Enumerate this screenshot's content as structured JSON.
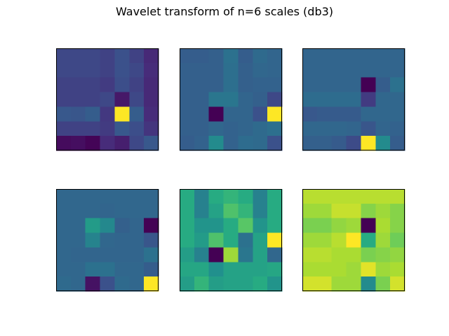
{
  "figure": {
    "title": "Wavelet transform of n=6 scales (db3)"
  },
  "chart_data": {
    "type": "heatmap",
    "title": "Wavelet transform of n=6 scales (db3)",
    "colormap": "viridis",
    "grid": false,
    "axes_ticks": false,
    "layout": "2x3",
    "value_range": [
      0,
      1
    ],
    "panels": [
      {
        "values": [
          [
            0.22,
            0.22,
            0.22,
            0.2,
            0.25,
            0.2,
            0.12
          ],
          [
            0.22,
            0.22,
            0.22,
            0.2,
            0.25,
            0.22,
            0.13
          ],
          [
            0.2,
            0.2,
            0.2,
            0.18,
            0.24,
            0.2,
            0.12
          ],
          [
            0.2,
            0.2,
            0.2,
            0.22,
            0.07,
            0.22,
            0.12
          ],
          [
            0.28,
            0.27,
            0.3,
            0.17,
            1.0,
            0.3,
            0.13
          ],
          [
            0.2,
            0.2,
            0.2,
            0.18,
            0.28,
            0.24,
            0.16
          ],
          [
            0.03,
            0.04,
            0.01,
            0.13,
            0.09,
            0.22,
            0.28
          ]
        ]
      },
      {
        "values": [
          [
            0.3,
            0.3,
            0.31,
            0.38,
            0.3,
            0.35,
            0.33
          ],
          [
            0.31,
            0.31,
            0.31,
            0.37,
            0.31,
            0.34,
            0.33
          ],
          [
            0.31,
            0.31,
            0.31,
            0.37,
            0.31,
            0.32,
            0.32
          ],
          [
            0.31,
            0.31,
            0.4,
            0.4,
            0.33,
            0.31,
            0.22
          ],
          [
            0.31,
            0.31,
            0.0,
            0.33,
            0.33,
            0.25,
            1.0
          ],
          [
            0.31,
            0.31,
            0.34,
            0.32,
            0.33,
            0.35,
            0.37
          ],
          [
            0.3,
            0.32,
            0.48,
            0.32,
            0.36,
            0.35,
            0.25
          ]
        ]
      },
      {
        "values": [
          [
            0.33,
            0.33,
            0.33,
            0.33,
            0.33,
            0.33,
            0.33
          ],
          [
            0.33,
            0.33,
            0.33,
            0.33,
            0.33,
            0.33,
            0.33
          ],
          [
            0.33,
            0.33,
            0.33,
            0.33,
            0.0,
            0.3,
            0.38
          ],
          [
            0.36,
            0.36,
            0.36,
            0.36,
            0.18,
            0.34,
            0.34
          ],
          [
            0.28,
            0.29,
            0.29,
            0.29,
            0.34,
            0.34,
            0.34
          ],
          [
            0.34,
            0.34,
            0.34,
            0.33,
            0.27,
            0.33,
            0.32
          ],
          [
            0.31,
            0.31,
            0.29,
            0.23,
            1.0,
            0.48,
            0.3
          ]
        ]
      },
      {
        "values": [
          [
            0.34,
            0.34,
            0.34,
            0.34,
            0.34,
            0.34,
            0.34
          ],
          [
            0.34,
            0.34,
            0.34,
            0.33,
            0.34,
            0.34,
            0.34
          ],
          [
            0.34,
            0.34,
            0.55,
            0.47,
            0.31,
            0.33,
            0.0
          ],
          [
            0.34,
            0.34,
            0.45,
            0.34,
            0.33,
            0.33,
            0.27
          ],
          [
            0.34,
            0.33,
            0.33,
            0.33,
            0.33,
            0.33,
            0.38
          ],
          [
            0.34,
            0.34,
            0.38,
            0.38,
            0.34,
            0.34,
            0.3
          ],
          [
            0.35,
            0.34,
            0.05,
            0.25,
            0.35,
            0.34,
            1.0
          ]
        ]
      },
      {
        "values": [
          [
            0.62,
            0.44,
            0.62,
            0.66,
            0.62,
            0.44,
            0.62
          ],
          [
            0.62,
            0.44,
            0.58,
            0.72,
            0.66,
            0.44,
            0.62
          ],
          [
            0.62,
            0.52,
            0.52,
            0.62,
            0.74,
            0.52,
            0.62
          ],
          [
            0.62,
            0.55,
            0.72,
            0.62,
            0.38,
            0.58,
            1.0
          ],
          [
            0.56,
            0.44,
            0.0,
            0.86,
            0.4,
            0.58,
            0.34
          ],
          [
            0.6,
            0.6,
            0.5,
            0.58,
            0.58,
            0.58,
            0.6
          ],
          [
            0.56,
            0.66,
            0.56,
            0.58,
            0.58,
            0.62,
            0.52
          ]
        ]
      },
      {
        "values": [
          [
            0.9,
            0.9,
            0.9,
            0.9,
            0.9,
            0.9,
            0.9
          ],
          [
            0.86,
            0.86,
            0.92,
            0.92,
            0.82,
            0.86,
            0.82
          ],
          [
            0.8,
            0.8,
            0.84,
            0.86,
            0.0,
            0.88,
            0.82
          ],
          [
            0.86,
            0.86,
            0.9,
            1.0,
            0.62,
            0.86,
            0.78
          ],
          [
            0.9,
            0.9,
            0.88,
            0.88,
            0.8,
            0.82,
            0.84
          ],
          [
            0.88,
            0.88,
            0.88,
            0.86,
            0.96,
            0.86,
            0.88
          ],
          [
            0.94,
            0.94,
            0.86,
            0.86,
            0.48,
            0.8,
            0.94
          ]
        ]
      }
    ]
  }
}
